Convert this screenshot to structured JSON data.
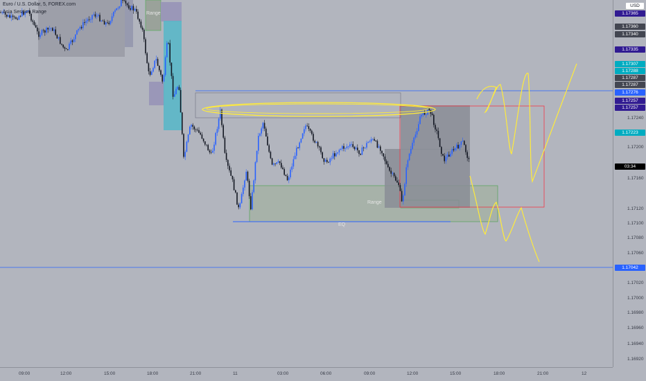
{
  "header": {
    "symbol": "Euro / U.S. Dollar, 5, FOREX.com",
    "indicator": "Asia Session Range",
    "currency": "USD"
  },
  "price_axis": {
    "ticks": [
      "1.17240",
      "1.17200",
      "1.17160",
      "1.17120",
      "1.17100",
      "1.17080",
      "1.17060",
      "1.17020",
      "1.17000",
      "1.16980",
      "1.16960",
      "1.16940",
      "1.16920"
    ],
    "badges": [
      {
        "text": "1.17365",
        "color": "#311b92"
      },
      {
        "text": "1.17360",
        "color": "#434651"
      },
      {
        "text": "1.17340",
        "color": "#434651"
      },
      {
        "text": "1.17335",
        "color": "#311b92"
      },
      {
        "text": "1.17307",
        "color": "#00acc1"
      },
      {
        "text": "1.17288",
        "color": "#00acc1"
      },
      {
        "text": "1.17287",
        "color": "#434651"
      },
      {
        "text": "1.17287",
        "color": "#434651"
      },
      {
        "text": "1.17276",
        "color": "#2962ff"
      },
      {
        "text": "1.17257",
        "color": "#311b92"
      },
      {
        "text": "1.17257",
        "color": "#311b92"
      },
      {
        "text": "1.17223",
        "color": "#00acc1"
      },
      {
        "text": "03:34",
        "color": "#000000"
      },
      {
        "text": "1.17042",
        "color": "#2962ff"
      }
    ]
  },
  "time_axis": {
    "labels": [
      "09:00",
      "12:00",
      "15:00",
      "18:00",
      "21:00",
      "11",
      "03:00",
      "06:00",
      "09:00",
      "12:00",
      "15:00",
      "18:00",
      "21:00",
      "12"
    ]
  },
  "annotations": {
    "range_top": "Range",
    "range_bottom": "Range",
    "eq": "EQ"
  },
  "colors": {
    "bull": "#2962ff",
    "bear": "#131722",
    "drawing": "#ffeb3b",
    "level_line": "#2962ff",
    "grey_box": "#8a8d96",
    "red_box": "#f23645"
  }
}
